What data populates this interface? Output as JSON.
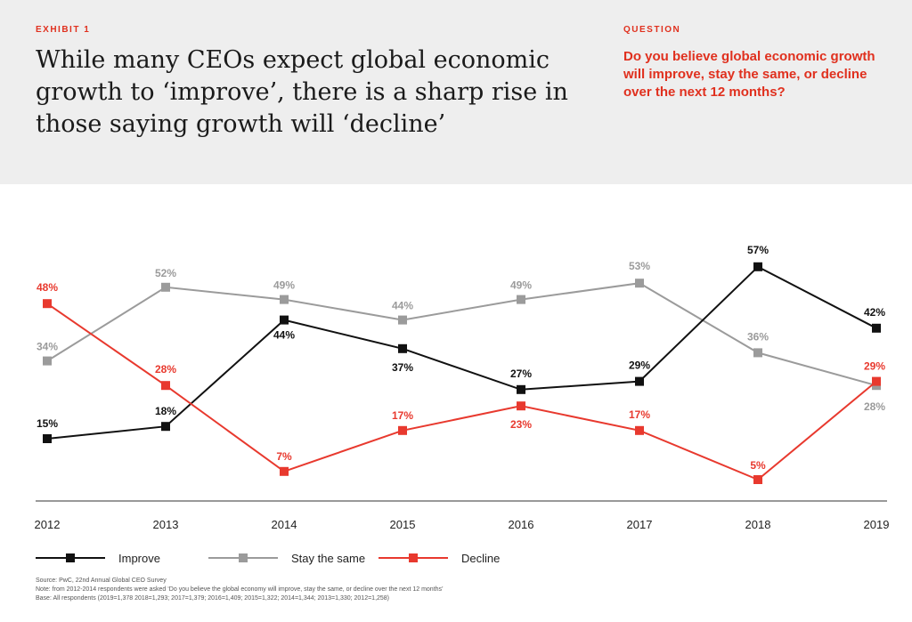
{
  "header": {
    "eyebrow": "EXHIBIT 1",
    "title": "While many CEOs expect global economic growth to ‘improve’, there is a sharp rise in those saying growth will ‘decline’",
    "question_label": "QUESTION",
    "question": "Do you believe global economic growth will improve, stay the same, or decline over the next 12 months?"
  },
  "colors": {
    "accent": "#e0301e",
    "improve": "#111111",
    "stay": "#9b9b9b",
    "decline": "#e8392e",
    "header_bg": "#eeeeee"
  },
  "chart_data": {
    "type": "line",
    "title": "",
    "xlabel": "",
    "ylabel": "",
    "x": [
      "2012",
      "2013",
      "2014",
      "2015",
      "2016",
      "2017",
      "2018",
      "2019"
    ],
    "ylim": [
      0,
      60
    ],
    "grid": false,
    "legend_position": "bottom-left",
    "value_suffix": "%",
    "series": [
      {
        "name": "Improve",
        "color": "#111111",
        "values": [
          15,
          18,
          44,
          37,
          27,
          29,
          57,
          42
        ]
      },
      {
        "name": "Stay the same",
        "color": "#9b9b9b",
        "values": [
          34,
          52,
          49,
          44,
          49,
          53,
          36,
          28
        ]
      },
      {
        "name": "Decline",
        "color": "#e8392e",
        "values": [
          48,
          28,
          7,
          17,
          23,
          17,
          5,
          29
        ]
      }
    ]
  },
  "footer": {
    "source": "Source: PwC, 22nd Annual Global CEO Survey",
    "note": "Note: from 2012-2014 respondents were asked ‘Do you believe the global economy will improve, stay the same, or decline over the next 12 months’",
    "base": "Base: All respondents (2019=1,378 2018=1,293; 2017=1,379; 2016=1,409; 2015=1,322; 2014=1,344; 2013=1,330; 2012=1,258)"
  }
}
